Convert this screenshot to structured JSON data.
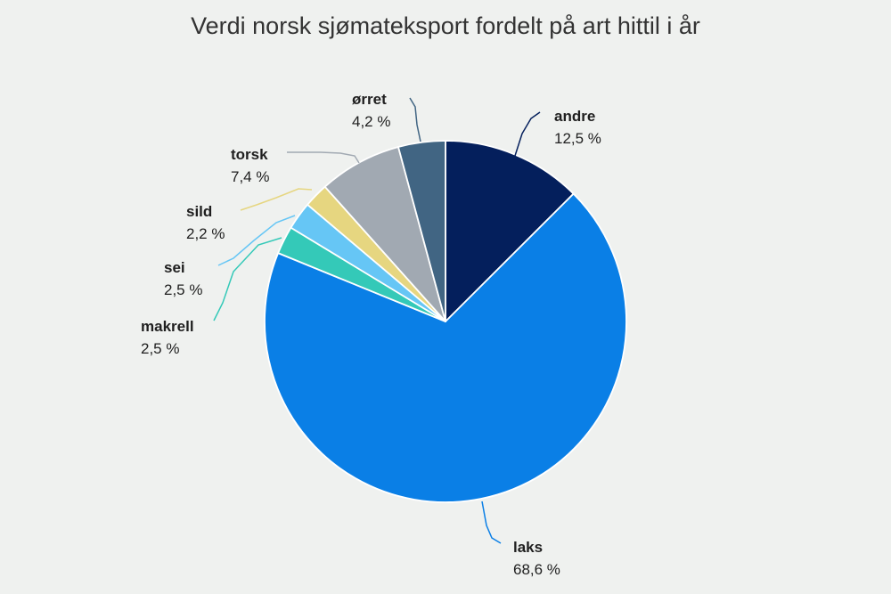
{
  "chart_data": {
    "type": "pie",
    "title": "Verdi norsk sjømateksport fordelt på art hittil i år",
    "legend": "none",
    "slices": [
      {
        "label": "andre",
        "value": 12.5,
        "value_label": "12,5 %",
        "color": "#041f5c"
      },
      {
        "label": "laks",
        "value": 68.6,
        "value_label": "68,6 %",
        "color": "#0a7fe6"
      },
      {
        "label": "makrell",
        "value": 2.5,
        "value_label": "2,5 %",
        "color": "#34c9b8"
      },
      {
        "label": "sei",
        "value": 2.5,
        "value_label": "2,5 %",
        "color": "#66c6f5"
      },
      {
        "label": "sild",
        "value": 2.2,
        "value_label": "2,2 %",
        "color": "#e6d680"
      },
      {
        "label": "torsk",
        "value": 7.4,
        "value_label": "7,4 %",
        "color": "#a1a9b2"
      },
      {
        "label": "ørret",
        "value": 4.2,
        "value_label": "4,2 %",
        "color": "#416583"
      }
    ]
  }
}
